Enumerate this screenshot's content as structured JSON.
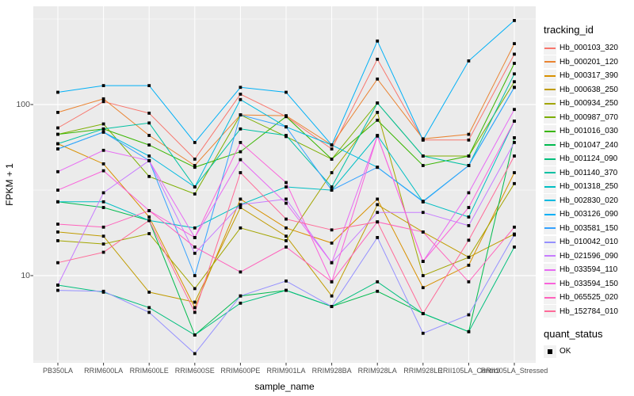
{
  "figure": {
    "y_axis": {
      "title": "FPKM + 1",
      "tick_labels": [
        "100",
        "10"
      ]
    },
    "x_axis": {
      "title": "sample_name"
    },
    "legend": {
      "tracking_title": "tracking_id",
      "quant_title": "quant_status",
      "quant_ok_label": "OK"
    },
    "colors": {
      "panel_bg": "#EBEBEB",
      "grid": "#FFFFFF",
      "axis_text": "#4D4D4D",
      "point": "#000000",
      "legend_key_bg": "#F2F2F2"
    }
  },
  "chart_data": {
    "type": "line",
    "log_y": true,
    "title": "",
    "xlabel": "sample_name",
    "ylabel": "FPKM + 1",
    "yticks": [
      10,
      100
    ],
    "ylim": [
      3,
      370
    ],
    "grid": true,
    "legend_position": "right",
    "point_shape": "filled-square",
    "point_meaning": "quant_status OK",
    "categories": [
      "PB350LA",
      "RRIM600LA",
      "RRIM600LE",
      "RRIM600SE",
      "RRIM600PE",
      "RRIM901LA",
      "RRIM928BA",
      "RRIM928LA",
      "RRIM928LE",
      "RRII105LA_Control",
      "RRII105LA_Stressed"
    ],
    "series": [
      {
        "name": "Hb_000103_320",
        "color": "#F8766D",
        "values": [
          73,
          104,
          89,
          48,
          115,
          85,
          55,
          184,
          62,
          62,
          197
        ]
      },
      {
        "name": "Hb_000201_120",
        "color": "#EA8331",
        "values": [
          90,
          108,
          66,
          44,
          87,
          86,
          58,
          141,
          63,
          67,
          227
        ]
      },
      {
        "name": "Hb_000317_390",
        "color": "#D89000",
        "values": [
          59,
          45,
          22,
          6.5,
          28,
          19,
          15.5,
          28,
          8.5,
          11.5,
          40
        ]
      },
      {
        "name": "Hb_000638_250",
        "color": "#C09B00",
        "values": [
          18,
          17,
          8,
          7,
          25,
          17,
          7.6,
          26,
          18,
          12.8,
          17.5
        ]
      },
      {
        "name": "Hb_000934_250",
        "color": "#A3A500",
        "values": [
          16,
          15.3,
          17.6,
          8.4,
          19,
          16,
          40,
          90,
          10,
          12.8,
          34.5
        ]
      },
      {
        "name": "Hb_000987_070",
        "color": "#7CAE00",
        "values": [
          67,
          77,
          38,
          30,
          87,
          65,
          48,
          102,
          50,
          50,
          136
        ]
      },
      {
        "name": "Hb_001016_030",
        "color": "#39B600",
        "values": [
          67,
          72,
          58,
          43,
          53,
          85,
          48,
          81,
          44,
          50,
          174
        ]
      },
      {
        "name": "Hb_001047_240",
        "color": "#00BB4E",
        "values": [
          27,
          25,
          21,
          4.5,
          7.6,
          8.2,
          6.6,
          8.1,
          6,
          4.7,
          64
        ]
      },
      {
        "name": "Hb_001124_090",
        "color": "#00BF7D",
        "values": [
          8.8,
          8,
          6.5,
          4.5,
          6.9,
          8.2,
          6.6,
          9.2,
          6,
          4.7,
          14.7
        ]
      },
      {
        "name": "Hb_001140_370",
        "color": "#00C1A3",
        "values": [
          59,
          72,
          78,
          33,
          72,
          66,
          33,
          102,
          50,
          44,
          151
        ]
      },
      {
        "name": "Hb_001318_250",
        "color": "#00BFC4",
        "values": [
          27,
          27,
          21,
          19,
          26,
          33,
          31.6,
          66,
          27,
          22,
          80
        ]
      },
      {
        "name": "Hb_002830_020",
        "color": "#00BAE0",
        "values": [
          55,
          69,
          50,
          33,
          107,
          74,
          58,
          43,
          27.2,
          44,
          126
        ]
      },
      {
        "name": "Hb_003126_090",
        "color": "#00B0F6",
        "values": [
          118,
          129,
          129,
          60,
          126,
          118,
          58,
          235,
          62,
          180,
          310
        ]
      },
      {
        "name": "Hb_003581_150",
        "color": "#35A2FF",
        "values": [
          55,
          69,
          47,
          10,
          87,
          74,
          31.6,
          43,
          27,
          44,
          126
        ]
      },
      {
        "name": "Hb_010042_010",
        "color": "#9590FF",
        "values": [
          8.2,
          8.1,
          6.1,
          3.5,
          7.6,
          9.3,
          6.6,
          16.7,
          4.6,
          5.9,
          17.3
        ]
      },
      {
        "name": "Hb_021596_090",
        "color": "#C77CFF",
        "values": [
          8.8,
          30.5,
          47,
          13.5,
          26,
          28,
          11.9,
          23.4,
          23.4,
          19.6,
          60
        ]
      },
      {
        "name": "Hb_033594_110",
        "color": "#E76BF3",
        "values": [
          40.5,
          54,
          47,
          16.7,
          47.6,
          26.5,
          11.9,
          65.5,
          12.1,
          30.5,
          93.6
        ]
      },
      {
        "name": "Hb_033594_150",
        "color": "#FA62DB",
        "values": [
          31.6,
          41,
          24,
          16.7,
          60,
          35,
          9.2,
          65.5,
          12.1,
          25,
          80
        ]
      },
      {
        "name": "Hb_065525_020",
        "color": "#FF62BC",
        "values": [
          20,
          19.2,
          24,
          14.7,
          10.5,
          14.7,
          9.2,
          20.6,
          18,
          9.2,
          19.2
        ]
      },
      {
        "name": "Hb_152784_010",
        "color": "#FF6A98",
        "values": [
          11.9,
          13.7,
          21,
          6.1,
          40,
          21.4,
          18.5,
          20.6,
          6,
          16.1,
          50
        ]
      }
    ]
  }
}
